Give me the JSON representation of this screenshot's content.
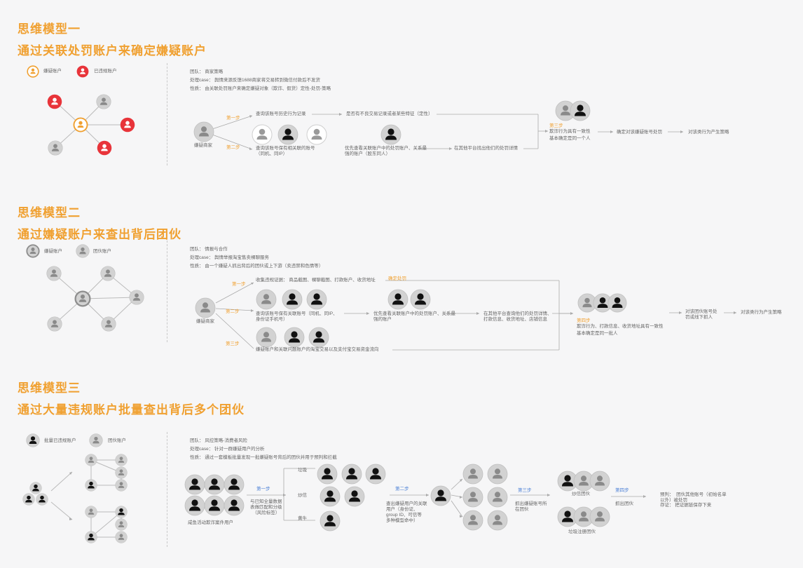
{
  "m1": {
    "title1": "思维模型一",
    "title2": "通过关联处罚账户来确定嫌疑账户",
    "legend_suspect": "嫌疑账户",
    "legend_violated": "已违规账户",
    "team": "团队：  商家策略",
    "case": "处理case：  舆情来源反馈1688商家将交易转到微信付款后不发货",
    "nature": "性质：  由关联处罚账户来确定嫌疑对象（欺诈、假货）定性-处罚-策略",
    "start_label": "嫌疑商家",
    "step1": "第一步",
    "step2": "第二步",
    "step3": "第三步",
    "s1_text": "查询该账号历史行为记录",
    "s1_result": "是否有不良交易记录或者某些特征（定性）",
    "s2_text": "查询该账号保有相关联的账号\n（同机、同IP）",
    "s2_result": "优先查看关联账户中的处罚账户、关系最\n强的账户（股东同人）",
    "s2_detail": "在其他平台找出他们的处罚详情",
    "s3_text": "欺诈行为具有一致性\n基本确定是同一个人",
    "s3_action": "确定对该嫌疑账号处罚",
    "s3_final": "对该类行为产生策略"
  },
  "m2": {
    "title1": "思维模型二",
    "title2": "通过嫌疑账户来查出背后团伙",
    "legend_suspect": "嫌疑账户",
    "legend_gang": "团伙账户",
    "team": "团队：  情报与合作",
    "case": "处理case：  舆情举报淘宝售卖裸聊服务",
    "nature": "性质：  由一个嫌疑人抓出背后的团伙或上下游（卖违禁和色情等）",
    "start_label": "嫌疑商家",
    "step1": "第一步",
    "step2": "第二步",
    "step3": "第三步",
    "step4": "第四步",
    "s1_text": "收集违规证据：  商品截图、裸聊截图、打款账户、收货地址",
    "s1_result": "确定处罚",
    "s2_text": "查询该账号保有关联账号（同机、同IP、\n身份证手机号）",
    "s2_result": "优先查看关联账户中的处罚账户、关系最\n强的账户",
    "s2_detail": "在其他平台查询他们的处罚详情、\n打款信息、收货地址、店铺信息",
    "s3_text": "嫌疑账户和关联问题账户的淘宝交易以及支付宝交易资金流向",
    "s4_text": "欺诈行为、打款信息、收货地址具有一致性\n基本确定是同一批人",
    "s4_action": "对该团伙账号处\n罚或线下抓人",
    "s4_final": "对该类行为产生策略"
  },
  "m3": {
    "title1": "思维模型三",
    "title2": "通过大量违规账户批量查出背后多个团伙",
    "legend_batch": "批量已违规账户",
    "legend_gang": "团伙账户",
    "team": "团队：  风控策略-消费者风险",
    "case": "处理case：  针对一群嫌疑用户的分析",
    "nature": "性质：  通过一套模板批量发现一批嫌疑账号背后的团伙并用于预判和拦截",
    "start_label": "咸鱼活动欺诈案件用户",
    "step1": "第一步",
    "step2": "第二步",
    "step3": "第三步",
    "step4": "第四步",
    "s1_text": "与已知全量数据\n表做匹配和分级\n（风险标签）",
    "cat_a": "垃圾",
    "cat_b": "炒信",
    "cat_c": "黄牛",
    "s2_text": "查出嫌疑用户的关联\n用户（身份证、\ngroup ID、可信等\n多种模型命中）",
    "s3_text": "抓出嫌疑账号所\n在团伙",
    "gang_a": "炒信团伙",
    "gang_b": "垃圾注册团伙",
    "s4_text": "抓出团伙",
    "result1": "预判：  团伙其他账号（初始名单\n以外）被处罚",
    "result2": "存证：  把证据链保存下来"
  },
  "colors": {
    "accent": "#f0a030",
    "violated": "#e8343a",
    "step_blue": "#4a7fd6",
    "node_gray": "#cfcfcf",
    "node_dark": "#111111"
  }
}
